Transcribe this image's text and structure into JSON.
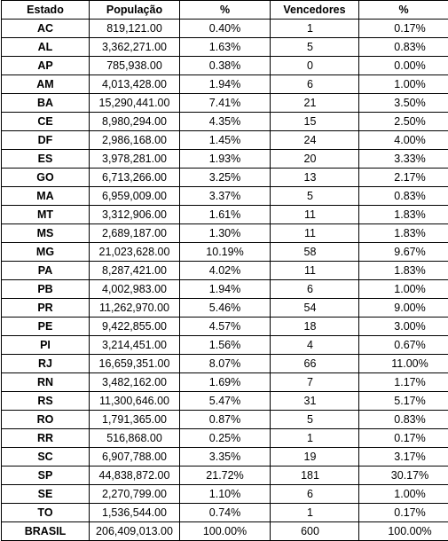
{
  "table": {
    "headers": [
      "Estado",
      "População",
      "%",
      "Vencedores",
      "%"
    ],
    "rows": [
      [
        "AC",
        "819,121.00",
        "0.40%",
        "1",
        "0.17%"
      ],
      [
        "AL",
        "3,362,271.00",
        "1.63%",
        "5",
        "0.83%"
      ],
      [
        "AP",
        "785,938.00",
        "0.38%",
        "0",
        "0.00%"
      ],
      [
        "AM",
        "4,013,428.00",
        "1.94%",
        "6",
        "1.00%"
      ],
      [
        "BA",
        "15,290,441.00",
        "7.41%",
        "21",
        "3.50%"
      ],
      [
        "CE",
        "8,980,294.00",
        "4.35%",
        "15",
        "2.50%"
      ],
      [
        "DF",
        "2,986,168.00",
        "1.45%",
        "24",
        "4.00%"
      ],
      [
        "ES",
        "3,978,281.00",
        "1.93%",
        "20",
        "3.33%"
      ],
      [
        "GO",
        "6,713,266.00",
        "3.25%",
        "13",
        "2.17%"
      ],
      [
        "MA",
        "6,959,009.00",
        "3.37%",
        "5",
        "0.83%"
      ],
      [
        "MT",
        "3,312,906.00",
        "1.61%",
        "11",
        "1.83%"
      ],
      [
        "MS",
        "2,689,187.00",
        "1.30%",
        "11",
        "1.83%"
      ],
      [
        "MG",
        "21,023,628.00",
        "10.19%",
        "58",
        "9.67%"
      ],
      [
        "PA",
        "8,287,421.00",
        "4.02%",
        "11",
        "1.83%"
      ],
      [
        "PB",
        "4,002,983.00",
        "1.94%",
        "6",
        "1.00%"
      ],
      [
        "PR",
        "11,262,970.00",
        "5.46%",
        "54",
        "9.00%"
      ],
      [
        "PE",
        "9,422,855.00",
        "4.57%",
        "18",
        "3.00%"
      ],
      [
        "PI",
        "3,214,451.00",
        "1.56%",
        "4",
        "0.67%"
      ],
      [
        "RJ",
        "16,659,351.00",
        "8.07%",
        "66",
        "11.00%"
      ],
      [
        "RN",
        "3,482,162.00",
        "1.69%",
        "7",
        "1.17%"
      ],
      [
        "RS",
        "11,300,646.00",
        "5.47%",
        "31",
        "5.17%"
      ],
      [
        "RO",
        "1,791,365.00",
        "0.87%",
        "5",
        "0.83%"
      ],
      [
        "RR",
        "516,868.00",
        "0.25%",
        "1",
        "0.17%"
      ],
      [
        "SC",
        "6,907,788.00",
        "3.35%",
        "19",
        "3.17%"
      ],
      [
        "SP",
        "44,838,872.00",
        "21.72%",
        "181",
        "30.17%"
      ],
      [
        "SE",
        "2,270,799.00",
        "1.10%",
        "6",
        "1.00%"
      ],
      [
        "TO",
        "1,536,544.00",
        "0.74%",
        "1",
        "0.17%"
      ],
      [
        "BRASIL",
        "206,409,013.00",
        "100.00%",
        "600",
        "100.00%"
      ]
    ]
  }
}
